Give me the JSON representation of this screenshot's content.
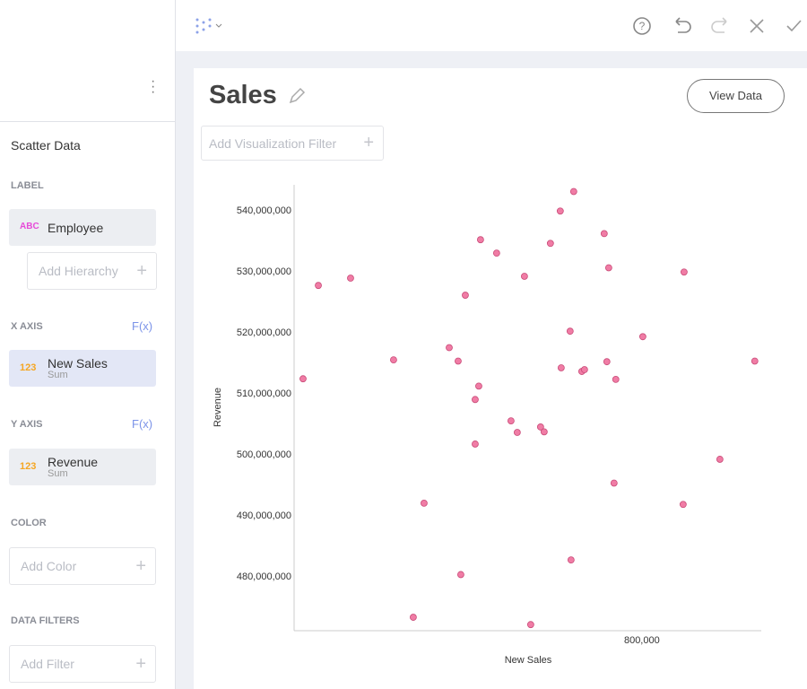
{
  "sidebar": {
    "title": "Scatter Data",
    "label_section": {
      "heading": "LABEL",
      "field": {
        "badge": "ABC",
        "name": "Employee"
      },
      "add": "Add Hierarchy"
    },
    "x_axis_section": {
      "heading": "X AXIS",
      "fx": "F(x)",
      "field": {
        "badge": "123",
        "name": "New Sales",
        "agg": "Sum"
      }
    },
    "y_axis_section": {
      "heading": "Y AXIS",
      "fx": "F(x)",
      "field": {
        "badge": "123",
        "name": "Revenue",
        "agg": "Sum"
      }
    },
    "color_section": {
      "heading": "COLOR",
      "add": "Add Color"
    },
    "filters_section": {
      "heading": "DATA FILTERS",
      "add": "Add Filter"
    }
  },
  "card": {
    "title": "Sales",
    "button": "View Data",
    "filter": "Add Visualization Filter"
  },
  "chart_data": {
    "type": "scatter",
    "x_label": "New Sales",
    "y_label": "Revenue",
    "color": "#f07ca5",
    "xlim": [
      500000,
      903000
    ],
    "ylim": [
      471200000,
      544300000
    ],
    "xticks": [
      {
        "value": 800000,
        "label": "800,000"
      }
    ],
    "yticks": [
      {
        "value": 480000000,
        "label": "480,000,000"
      },
      {
        "value": 490000000,
        "label": "490,000,000"
      },
      {
        "value": 500000000,
        "label": "500,000,000"
      },
      {
        "value": 510000000,
        "label": "510,000,000"
      },
      {
        "value": 520000000,
        "label": "520,000,000"
      },
      {
        "value": 530000000,
        "label": "530,000,000"
      },
      {
        "value": 540000000,
        "label": "540,000,000"
      }
    ],
    "x": [
      507700,
      520900,
      548700,
      585800,
      602800,
      612100,
      633800,
      641500,
      643800,
      647700,
      656200,
      659300,
      656200,
      660800,
      674700,
      687100,
      692500,
      698700,
      704100,
      712600,
      715700,
      721100,
      729600,
      730400,
      738100,
      738900,
      741200,
      748200,
      750500,
      767500,
      771400,
      769800,
      776000,
      777500,
      800800,
      836400,
      835600,
      867300,
      897400
    ],
    "y": [
      512500000,
      527800000,
      529000000,
      515600000,
      473400000,
      492100000,
      517600000,
      515400000,
      480400000,
      526200000,
      509100000,
      511300000,
      501800000,
      535300000,
      533100000,
      505600000,
      503700000,
      529300000,
      472200000,
      504600000,
      503800000,
      534700000,
      540000000,
      514300000,
      520300000,
      482800000,
      543200000,
      513700000,
      514000000,
      536300000,
      530700000,
      515300000,
      495400000,
      512400000,
      519400000,
      530000000,
      491900000,
      499300000,
      515400000
    ]
  }
}
